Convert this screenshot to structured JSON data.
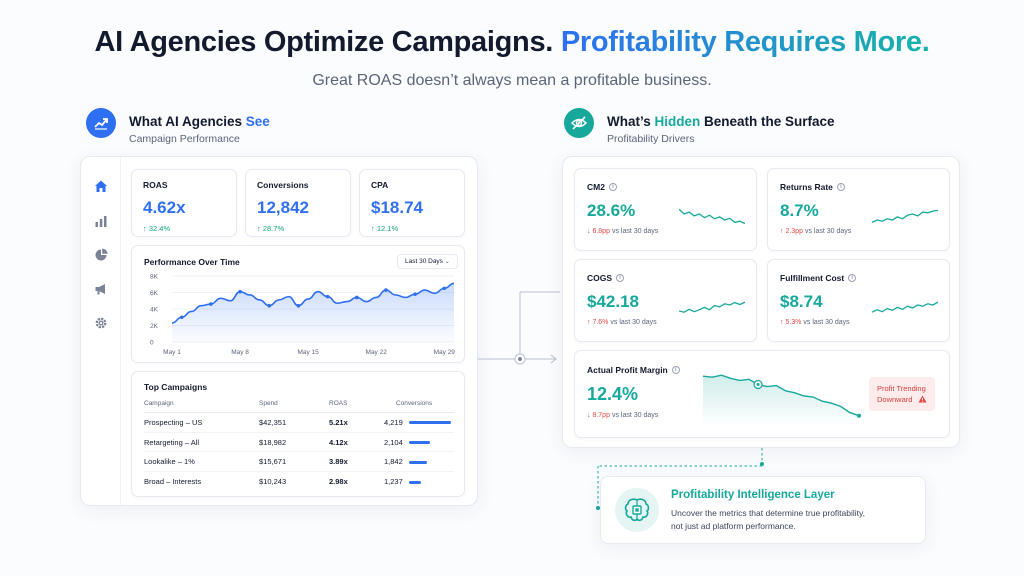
{
  "header": {
    "headline_part1": "AI Agencies Optimize Campaigns.",
    "headline_part2": "Profitability Requires More.",
    "subheadline": "Great ROAS doesn’t always mean a profitable business."
  },
  "left_section": {
    "title_plain": "What AI Agencies",
    "title_accent": "See",
    "subtitle": "Campaign Performance",
    "icon": "trending-up-icon",
    "accent_color": "#2f6ff2"
  },
  "right_section": {
    "title_pre": "What’s",
    "title_accent": "Hidden",
    "title_post": "Beneath the Surface",
    "subtitle": "Profitability Drivers",
    "icon": "eye-off-icon",
    "accent_color": "#17a89c"
  },
  "sidebar": {
    "icons": [
      "home-icon",
      "bar-chart-icon",
      "pie-chart-icon",
      "megaphone-icon",
      "settings-icon"
    ]
  },
  "kpis": [
    {
      "label": "ROAS",
      "value": "4.62x",
      "change": "32.4%"
    },
    {
      "label": "Conversions",
      "value": "12,842",
      "change": "28.7%"
    },
    {
      "label": "CPA",
      "value": "$18.74",
      "change": "12.1%"
    }
  ],
  "performance_chart": {
    "title": "Performance Over Time",
    "range_selector": "Last 30 Days",
    "chart_data": {
      "type": "area",
      "x": [
        "May 1",
        "May 2",
        "May 3",
        "May 4",
        "May 5",
        "May 6",
        "May 7",
        "May 8",
        "May 9",
        "May 10",
        "May 11",
        "May 12",
        "May 13",
        "May 14",
        "May 15",
        "May 16",
        "May 17",
        "May 18",
        "May 19",
        "May 20",
        "May 21",
        "May 22",
        "May 23",
        "May 24",
        "May 25",
        "May 26",
        "May 27",
        "May 28",
        "May 29",
        "May 30"
      ],
      "x_tick_labels": [
        "May 1",
        "May 8",
        "May 15",
        "May 22",
        "May 29"
      ],
      "y_tick_labels": [
        "8K",
        "6K",
        "4K",
        "2K",
        "0"
      ],
      "ylim": [
        0,
        8000
      ],
      "values": [
        2300,
        3000,
        3700,
        4400,
        4600,
        5300,
        5000,
        6100,
        5700,
        5100,
        4400,
        5100,
        5500,
        4400,
        5200,
        6100,
        5500,
        4700,
        4900,
        5400,
        4900,
        5400,
        6300,
        5700,
        5400,
        5800,
        6300,
        5900,
        6500,
        7100
      ]
    }
  },
  "campaigns": {
    "title": "Top Campaigns",
    "columns": [
      "Campaign",
      "Spend",
      "ROAS",
      "Conversions"
    ],
    "rows": [
      {
        "name": "Prospecting – US",
        "spend": "$42,351",
        "roas": "5.21x",
        "conversions": "4,219",
        "bar_fraction": 1.0
      },
      {
        "name": "Retargeting – All",
        "spend": "$18,982",
        "roas": "4.12x",
        "conversions": "2,104",
        "bar_fraction": 0.5
      },
      {
        "name": "Lookalike – 1%",
        "spend": "$15,671",
        "roas": "3.89x",
        "conversions": "1,842",
        "bar_fraction": 0.44
      },
      {
        "name": "Broad – Interests",
        "spend": "$10,243",
        "roas": "2.98x",
        "conversions": "1,237",
        "bar_fraction": 0.29
      }
    ]
  },
  "metrics": [
    {
      "label": "CM2",
      "value": "28.6%",
      "change": "6.8pp",
      "suffix": "vs last 30 days",
      "direction": "down",
      "trend": [
        0.7,
        0.5,
        0.58,
        0.42,
        0.5,
        0.35,
        0.45,
        0.3,
        0.38,
        0.25,
        0.32,
        0.15,
        0.2,
        0.1
      ]
    },
    {
      "label": "Returns Rate",
      "value": "8.7%",
      "change": "2.3pp",
      "suffix": "vs last 30 days",
      "direction": "up",
      "trend": [
        0.15,
        0.25,
        0.2,
        0.3,
        0.25,
        0.38,
        0.3,
        0.45,
        0.5,
        0.42,
        0.58,
        0.55,
        0.62,
        0.65
      ]
    },
    {
      "label": "COGS",
      "value": "$42.18",
      "change": "7.6%",
      "suffix": "vs last 30 days",
      "direction": "up",
      "trend": [
        0.25,
        0.2,
        0.32,
        0.22,
        0.3,
        0.4,
        0.3,
        0.48,
        0.42,
        0.55,
        0.5,
        0.6,
        0.52,
        0.62
      ]
    },
    {
      "label": "Fulfillment Cost",
      "value": "$8.74",
      "change": "5.3%",
      "suffix": "vs last 30 days",
      "direction": "up",
      "trend": [
        0.2,
        0.3,
        0.22,
        0.35,
        0.28,
        0.4,
        0.32,
        0.45,
        0.38,
        0.5,
        0.45,
        0.55,
        0.5,
        0.62
      ]
    }
  ],
  "profit_margin": {
    "label": "Actual Profit Margin",
    "value": "12.4%",
    "change": "8.7pp",
    "suffix": "vs last 30 days",
    "trend": [
      0.9,
      0.88,
      0.92,
      0.86,
      0.82,
      0.84,
      0.74,
      0.7,
      0.72,
      0.62,
      0.58,
      0.52,
      0.5,
      0.42,
      0.38,
      0.32,
      0.2,
      0.14
    ],
    "badge_line1": "Profit Trending",
    "badge_line2": "Downward"
  },
  "intelligence_layer": {
    "title": "Profitability Intelligence Layer",
    "line1": "Uncover the metrics that determine true profitability,",
    "line2": "not just ad platform performance.",
    "icon": "brain-chip-icon"
  }
}
